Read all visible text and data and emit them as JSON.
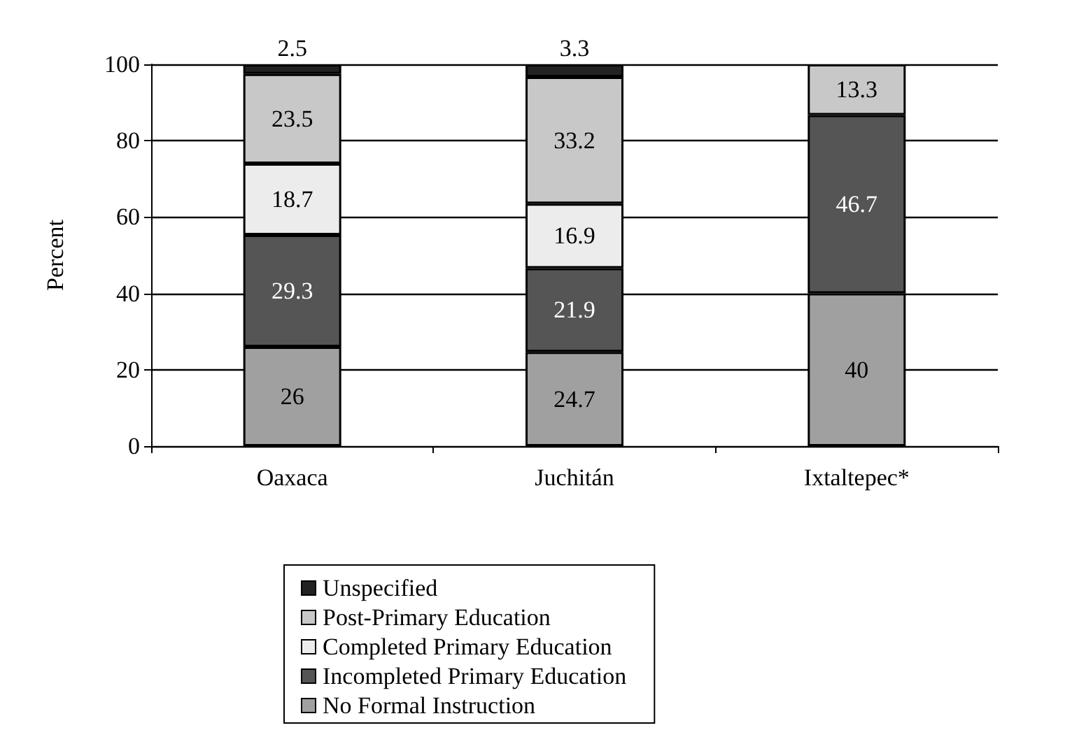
{
  "chart_data": {
    "type": "bar",
    "stacked": true,
    "ylabel": "Percent",
    "categories": [
      "Oaxaca",
      "Juchitán",
      "Ixtaltepec*"
    ],
    "series": [
      {
        "name": "No Formal Instruction",
        "color": "#a0a0a0",
        "values": [
          26,
          24.7,
          40
        ]
      },
      {
        "name": "Incompleted Primary Education",
        "color": "#555555",
        "values": [
          29.3,
          21.9,
          46.7
        ]
      },
      {
        "name": "Completed Primary Education",
        "color": "#ececec",
        "values": [
          18.7,
          16.9,
          null
        ]
      },
      {
        "name": "Post-Primary Education",
        "color": "#c8c8c8",
        "values": [
          23.5,
          33.2,
          13.3
        ]
      },
      {
        "name": "Unspecified",
        "color": "#222222",
        "values": [
          2.5,
          3.3,
          null
        ]
      }
    ],
    "ylim": [
      0,
      100
    ],
    "yticks": [
      0,
      20,
      40,
      60,
      80,
      100
    ],
    "grid": "y",
    "legend": "bottom",
    "data_labels": true
  }
}
